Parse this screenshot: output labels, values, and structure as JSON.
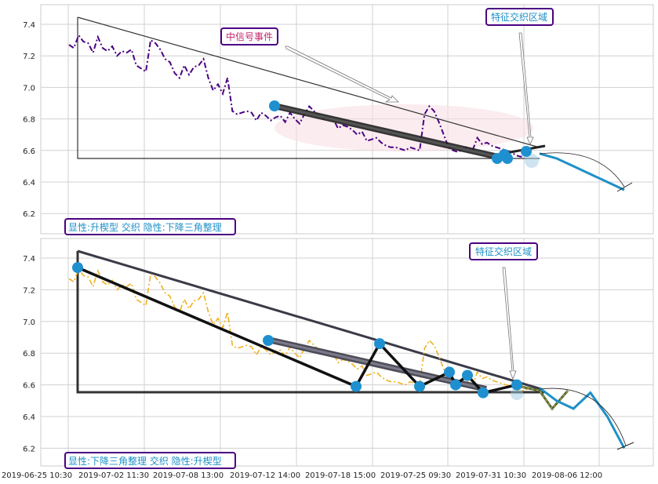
{
  "chart_data": [
    {
      "type": "line",
      "ylim": [
        6.1,
        7.52
      ],
      "yticks": [
        "6.2",
        "6.4",
        "6.6",
        "6.8",
        "7.0",
        "7.2",
        "7.4"
      ],
      "grid": true,
      "series": [
        {
          "style": "dash-dot",
          "color": "#4b0082",
          "values": [
            7.27,
            7.25,
            7.33,
            7.29,
            7.28,
            7.22,
            7.32,
            7.25,
            7.23,
            7.26,
            7.2,
            7.23,
            7.22,
            7.24,
            7.14,
            7.12,
            7.1,
            7.3,
            7.28,
            7.24,
            7.18,
            7.16,
            7.09,
            7.06,
            7.14,
            7.08,
            7.13,
            7.14,
            7.18,
            7.06,
            6.98,
            7.02,
            6.96,
            7.06,
            6.85,
            6.83,
            6.84,
            6.85,
            6.84,
            6.79,
            6.84,
            6.82,
            6.79,
            6.81,
            6.82,
            6.78,
            6.84,
            6.8,
            6.77,
            6.83,
            6.88,
            6.85,
            6.82,
            6.8,
            6.81,
            6.8,
            6.74,
            6.76,
            6.75,
            6.73,
            6.7,
            6.72,
            6.66,
            6.67,
            6.68,
            6.65,
            6.63,
            6.62,
            6.62,
            6.61,
            6.6,
            6.62,
            6.61,
            6.6,
            6.83,
            6.88,
            6.85,
            6.78,
            6.7,
            6.62,
            6.6,
            6.59,
            6.61,
            6.62,
            6.6,
            6.68,
            6.64,
            6.65,
            6.63,
            6.62,
            6.61,
            6.6,
            6.59,
            6.57,
            6.56,
            6.57,
            6.58
          ]
        }
      ],
      "projection": {
        "color": "#1e90c8",
        "values": [
          6.58,
          6.55,
          6.5,
          6.45,
          6.4,
          6.35
        ]
      },
      "points": [
        6.88,
        6.55,
        6.57,
        6.55,
        6.6
      ],
      "annotations": [
        {
          "text": "中信号事件",
          "color": "#c0266c"
        },
        {
          "text": "特征交织区域",
          "color": "#1e90c8"
        }
      ],
      "pattern_label": "显性:升楔型 交织 隐性:下降三角整理",
      "pattern_label_color": "#1e90c8"
    },
    {
      "type": "line",
      "ylim": [
        6.1,
        7.52
      ],
      "yticks": [
        "6.2",
        "6.4",
        "6.6",
        "6.8",
        "7.0",
        "7.2",
        "7.4"
      ],
      "grid": true,
      "series": [
        {
          "style": "dash-dot",
          "color": "#f0b020",
          "values": [
            7.27,
            7.25,
            7.33,
            7.29,
            7.28,
            7.22,
            7.32,
            7.25,
            7.23,
            7.26,
            7.2,
            7.23,
            7.22,
            7.24,
            7.14,
            7.12,
            7.1,
            7.3,
            7.28,
            7.24,
            7.18,
            7.16,
            7.09,
            7.06,
            7.14,
            7.08,
            7.13,
            7.14,
            7.18,
            7.06,
            6.98,
            7.02,
            6.96,
            7.06,
            6.85,
            6.83,
            6.84,
            6.85,
            6.84,
            6.79,
            6.84,
            6.82,
            6.79,
            6.81,
            6.82,
            6.78,
            6.84,
            6.8,
            6.77,
            6.83,
            6.88,
            6.85,
            6.82,
            6.8,
            6.81,
            6.8,
            6.74,
            6.76,
            6.75,
            6.73,
            6.7,
            6.72,
            6.66,
            6.67,
            6.68,
            6.65,
            6.63,
            6.62,
            6.62,
            6.61,
            6.6,
            6.62,
            6.61,
            6.6,
            6.83,
            6.88,
            6.85,
            6.78,
            6.7,
            6.62,
            6.6,
            6.59,
            6.61,
            6.62,
            6.6,
            6.68,
            6.64,
            6.65,
            6.63,
            6.62,
            6.61,
            6.6,
            6.59,
            6.57,
            6.56,
            6.57,
            6.58
          ]
        }
      ],
      "projection": {
        "color": "#1e90c8",
        "values": [
          6.58,
          6.5,
          6.45,
          6.55,
          6.4,
          6.2
        ]
      },
      "zigzag_points": [
        7.34,
        6.59,
        6.86,
        6.59,
        6.68,
        6.6,
        6.66,
        6.55,
        6.6
      ],
      "points": [
        6.88
      ],
      "annotations": [
        {
          "text": "特征交织区域",
          "color": "#1e90c8"
        }
      ],
      "pattern_label": "显性:下降三角整理 交织 隐性:升楔型",
      "pattern_label_color": "#1e90c8"
    }
  ],
  "x_axis": {
    "ticks": [
      "2019-06-25 10:30",
      "2019-07-02 11:30",
      "2019-07-08 13:00",
      "2019-07-12 14:00",
      "2019-07-18 15:00",
      "2019-07-25 09:30",
      "2019-07-31 10:30",
      "2019-08-06 12:00"
    ]
  }
}
